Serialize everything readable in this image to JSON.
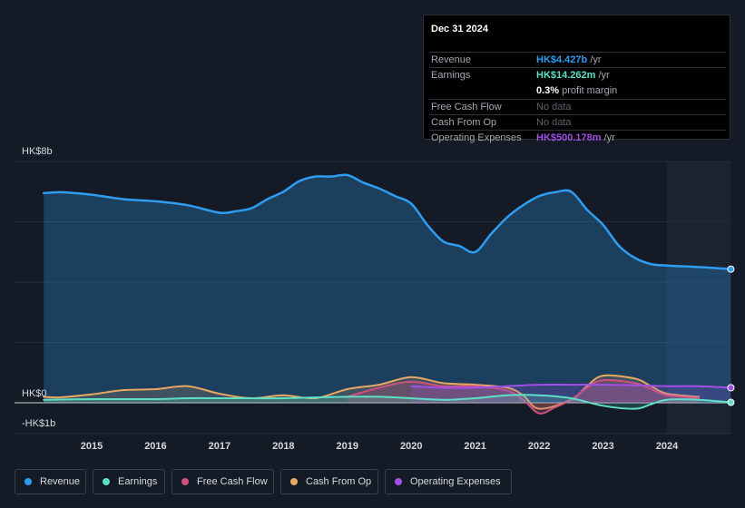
{
  "tooltip": {
    "date": "Dec 31 2024",
    "rows": [
      {
        "label": "Revenue",
        "value": "HK$4.427b",
        "unit": " /yr",
        "color": "#2e9df0"
      },
      {
        "label": "Earnings",
        "value": "HK$14.262m",
        "unit": " /yr",
        "color": "#5de0c8"
      },
      {
        "label": "",
        "value": "0.3%",
        "unit": " profit margin",
        "color": "#ffffff"
      },
      {
        "label": "Free Cash Flow",
        "value": "No data",
        "unit": "",
        "color": "#5f636b"
      },
      {
        "label": "Cash From Op",
        "value": "No data",
        "unit": "",
        "color": "#5f636b"
      },
      {
        "label": "Operating Expenses",
        "value": "HK$500.178m",
        "unit": " /yr",
        "color": "#a14fe6"
      }
    ]
  },
  "legend": [
    {
      "label": "Revenue",
      "color": "#2e9df0"
    },
    {
      "label": "Earnings",
      "color": "#5de0c8"
    },
    {
      "label": "Free Cash Flow",
      "color": "#d0517e"
    },
    {
      "label": "Cash From Op",
      "color": "#e7a864"
    },
    {
      "label": "Operating Expenses",
      "color": "#a14fe6"
    }
  ],
  "chart_data": {
    "type": "area",
    "currency": "HK$",
    "y_axis_labels": [
      {
        "text": "HK$8b",
        "value": 8
      },
      {
        "text": "HK$0",
        "value": 0
      },
      {
        "text": "-HK$1b",
        "value": -1
      }
    ],
    "ylim": [
      -1,
      8
    ],
    "xlim": [
      2014.0,
      2025.0
    ],
    "x_tick_labels": [
      "2015",
      "2016",
      "2017",
      "2018",
      "2019",
      "2020",
      "2021",
      "2022",
      "2023",
      "2024"
    ],
    "x_ticks": [
      2015,
      2016,
      2017,
      2018,
      2019,
      2020,
      2021,
      2022,
      2023,
      2024
    ],
    "highlight_start": 2024.0,
    "series": [
      {
        "name": "Revenue",
        "color": "#2e9df0",
        "fill": true,
        "points": [
          [
            2014.25,
            6.95
          ],
          [
            2014.5,
            6.98
          ],
          [
            2014.75,
            6.95
          ],
          [
            2015.0,
            6.9
          ],
          [
            2015.5,
            6.75
          ],
          [
            2016.0,
            6.68
          ],
          [
            2016.5,
            6.55
          ],
          [
            2017.0,
            6.3
          ],
          [
            2017.25,
            6.35
          ],
          [
            2017.5,
            6.45
          ],
          [
            2017.75,
            6.75
          ],
          [
            2018.0,
            7.0
          ],
          [
            2018.25,
            7.35
          ],
          [
            2018.5,
            7.5
          ],
          [
            2018.75,
            7.5
          ],
          [
            2019.0,
            7.55
          ],
          [
            2019.25,
            7.3
          ],
          [
            2019.5,
            7.1
          ],
          [
            2019.75,
            6.85
          ],
          [
            2020.0,
            6.6
          ],
          [
            2020.25,
            5.9
          ],
          [
            2020.5,
            5.35
          ],
          [
            2020.75,
            5.2
          ],
          [
            2021.0,
            5.0
          ],
          [
            2021.25,
            5.6
          ],
          [
            2021.5,
            6.15
          ],
          [
            2021.75,
            6.55
          ],
          [
            2022.0,
            6.85
          ],
          [
            2022.25,
            6.98
          ],
          [
            2022.5,
            7.0
          ],
          [
            2022.75,
            6.4
          ],
          [
            2023.0,
            5.9
          ],
          [
            2023.25,
            5.2
          ],
          [
            2023.5,
            4.8
          ],
          [
            2023.75,
            4.6
          ],
          [
            2024.0,
            4.55
          ],
          [
            2024.5,
            4.5
          ],
          [
            2025.0,
            4.43
          ]
        ]
      },
      {
        "name": "Earnings",
        "color": "#5de0c8",
        "fill": true,
        "points": [
          [
            2014.25,
            0.1
          ],
          [
            2015.0,
            0.12
          ],
          [
            2016.0,
            0.12
          ],
          [
            2016.5,
            0.15
          ],
          [
            2017.0,
            0.15
          ],
          [
            2017.5,
            0.15
          ],
          [
            2018.0,
            0.15
          ],
          [
            2019.0,
            0.2
          ],
          [
            2019.5,
            0.2
          ],
          [
            2020.0,
            0.15
          ],
          [
            2020.5,
            0.1
          ],
          [
            2021.0,
            0.15
          ],
          [
            2021.5,
            0.25
          ],
          [
            2022.0,
            0.25
          ],
          [
            2022.5,
            0.15
          ],
          [
            2023.0,
            -0.1
          ],
          [
            2023.5,
            -0.2
          ],
          [
            2023.75,
            -0.05
          ],
          [
            2024.0,
            0.1
          ],
          [
            2024.5,
            0.1
          ],
          [
            2025.0,
            0.014
          ]
        ]
      },
      {
        "name": "Free Cash Flow",
        "color": "#d0517e",
        "fill": true,
        "points": [
          [
            2019.0,
            0.2
          ],
          [
            2019.5,
            0.5
          ],
          [
            2020.0,
            0.7
          ],
          [
            2020.5,
            0.55
          ],
          [
            2021.0,
            0.55
          ],
          [
            2021.5,
            0.4
          ],
          [
            2021.75,
            0.1
          ],
          [
            2022.0,
            -0.35
          ],
          [
            2022.25,
            -0.15
          ],
          [
            2022.5,
            0.1
          ],
          [
            2022.75,
            0.5
          ],
          [
            2023.0,
            0.75
          ],
          [
            2023.5,
            0.65
          ],
          [
            2023.75,
            0.45
          ],
          [
            2024.0,
            0.25
          ],
          [
            2024.5,
            0.15
          ]
        ]
      },
      {
        "name": "Cash From Op",
        "color": "#e7a864",
        "fill": true,
        "points": [
          [
            2014.25,
            0.2
          ],
          [
            2014.5,
            0.18
          ],
          [
            2015.0,
            0.28
          ],
          [
            2015.5,
            0.42
          ],
          [
            2016.0,
            0.45
          ],
          [
            2016.5,
            0.55
          ],
          [
            2017.0,
            0.3
          ],
          [
            2017.5,
            0.15
          ],
          [
            2018.0,
            0.25
          ],
          [
            2018.5,
            0.15
          ],
          [
            2019.0,
            0.45
          ],
          [
            2019.5,
            0.6
          ],
          [
            2020.0,
            0.85
          ],
          [
            2020.5,
            0.65
          ],
          [
            2021.0,
            0.6
          ],
          [
            2021.5,
            0.5
          ],
          [
            2021.75,
            0.25
          ],
          [
            2022.0,
            -0.2
          ],
          [
            2022.5,
            0.1
          ],
          [
            2022.75,
            0.55
          ],
          [
            2023.0,
            0.9
          ],
          [
            2023.5,
            0.8
          ],
          [
            2023.75,
            0.55
          ],
          [
            2024.0,
            0.3
          ],
          [
            2024.5,
            0.2
          ]
        ]
      },
      {
        "name": "Operating Expenses",
        "color": "#a14fe6",
        "fill": true,
        "points": [
          [
            2020.0,
            0.55
          ],
          [
            2020.5,
            0.5
          ],
          [
            2021.0,
            0.5
          ],
          [
            2021.5,
            0.55
          ],
          [
            2022.0,
            0.6
          ],
          [
            2022.5,
            0.6
          ],
          [
            2023.0,
            0.6
          ],
          [
            2023.5,
            0.58
          ],
          [
            2024.0,
            0.55
          ],
          [
            2024.5,
            0.55
          ],
          [
            2025.0,
            0.5
          ]
        ]
      }
    ]
  }
}
